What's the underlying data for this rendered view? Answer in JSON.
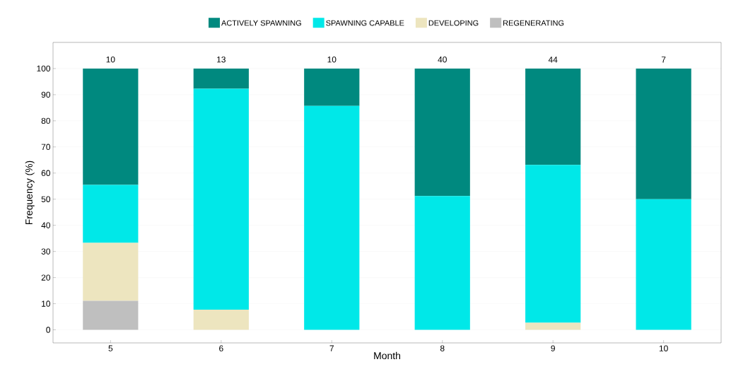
{
  "chart_data": {
    "type": "bar",
    "stacked": true,
    "xlabel": "Month",
    "ylabel": "Frequency (%)",
    "categories": [
      "5",
      "6",
      "7",
      "8",
      "9",
      "10"
    ],
    "series": [
      {
        "name": "REGENERATING",
        "color": "#bfbfbf",
        "values": [
          11.1,
          0,
          0,
          0,
          0,
          0
        ]
      },
      {
        "name": "DEVELOPING",
        "color": "#ede5bf",
        "values": [
          22.2,
          7.7,
          0,
          0,
          2.7,
          0
        ]
      },
      {
        "name": "SPAWNING CAPABLE",
        "color": "#00e8e8",
        "values": [
          22.2,
          84.6,
          85.7,
          51.2,
          60.4,
          50
        ]
      },
      {
        "name": "ACTIVELY SPAWNING",
        "color": "#00897f",
        "values": [
          44.5,
          7.7,
          14.3,
          48.8,
          36.9,
          50
        ]
      }
    ],
    "annotations": [
      {
        "text": "10",
        "x": "5",
        "y": 100
      },
      {
        "text": "13",
        "x": "6",
        "y": 100
      },
      {
        "text": "10",
        "x": "7",
        "y": 100
      },
      {
        "text": "40",
        "x": "8",
        "y": 100
      },
      {
        "text": "44",
        "x": "9",
        "y": 100
      },
      {
        "text": "7",
        "x": "10",
        "y": 100
      }
    ],
    "ylim": [
      -5,
      110
    ],
    "yticks": [
      0,
      10,
      20,
      30,
      40,
      50,
      60,
      70,
      80,
      90,
      100
    ],
    "grid": "y",
    "legend": "top"
  }
}
